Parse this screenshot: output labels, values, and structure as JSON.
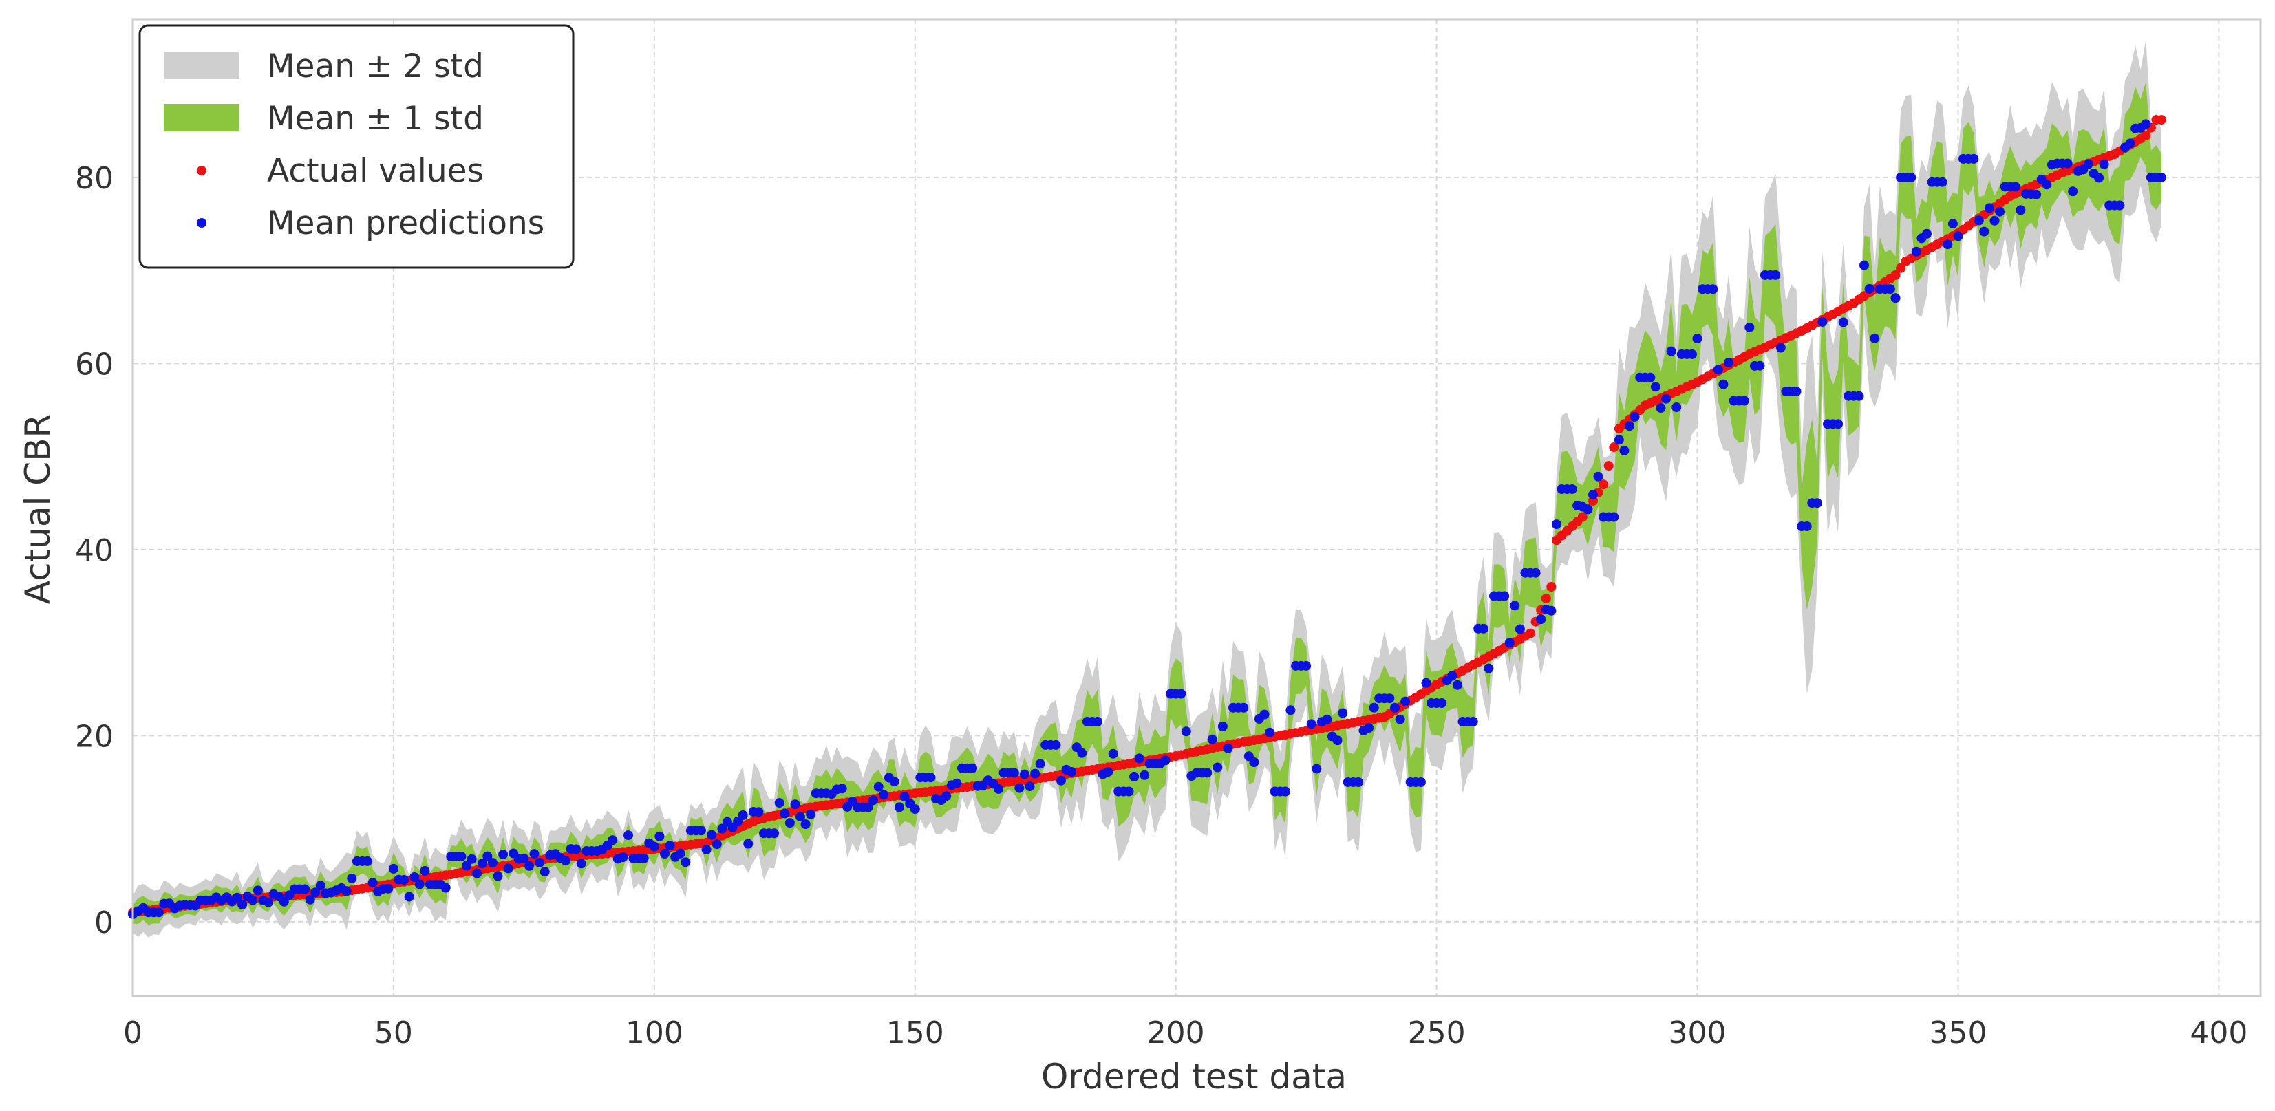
{
  "chart_data": {
    "type": "scatter",
    "xlabel": "Ordered test data",
    "ylabel": "Actual CBR",
    "xlim": [
      0,
      408
    ],
    "ylim": [
      -8,
      97
    ],
    "xticks": [
      0,
      50,
      100,
      150,
      200,
      250,
      300,
      350,
      400
    ],
    "yticks": [
      0,
      20,
      40,
      60,
      80
    ],
    "xtick_labels": [
      "0",
      "50",
      "100",
      "150",
      "200",
      "250",
      "300",
      "350",
      "400"
    ],
    "ytick_labels": [
      "0",
      "20",
      "40",
      "60",
      "80"
    ],
    "grid": true,
    "legend_position": "top-left",
    "series_count": 390,
    "legend": [
      {
        "label": "Mean ± 2 std",
        "kind": "band",
        "color": "#cfcfcf"
      },
      {
        "label": "Mean ± 1 std",
        "kind": "band",
        "color": "#8cc63f"
      },
      {
        "label": "Actual values",
        "kind": "point",
        "color": "#ee1111"
      },
      {
        "label": "Mean predictions",
        "kind": "point",
        "color": "#0b12e0"
      }
    ],
    "actual_curve": [
      [
        0,
        1.0
      ],
      [
        20,
        2.4
      ],
      [
        40,
        3.2
      ],
      [
        60,
        5.0
      ],
      [
        80,
        6.8
      ],
      [
        100,
        7.8
      ],
      [
        110,
        8.5
      ],
      [
        120,
        11.0
      ],
      [
        130,
        12.3
      ],
      [
        150,
        13.8
      ],
      [
        175,
        15.5
      ],
      [
        200,
        17.8
      ],
      [
        210,
        19.0
      ],
      [
        230,
        21.0
      ],
      [
        240,
        22.0
      ],
      [
        250,
        25.5
      ],
      [
        260,
        28.5
      ],
      [
        268,
        31.0
      ],
      [
        272,
        36.0
      ],
      [
        273,
        41.0
      ],
      [
        278,
        43.5
      ],
      [
        282,
        47.0
      ],
      [
        285,
        53.0
      ],
      [
        290,
        55.5
      ],
      [
        300,
        58.0
      ],
      [
        310,
        61.0
      ],
      [
        320,
        63.5
      ],
      [
        330,
        66.5
      ],
      [
        338,
        69.5
      ],
      [
        340,
        71.0
      ],
      [
        350,
        74.0
      ],
      [
        360,
        78.0
      ],
      [
        370,
        80.5
      ],
      [
        380,
        82.5
      ],
      [
        386,
        84.5
      ],
      [
        388,
        86.2
      ],
      [
        390,
        86.2
      ]
    ],
    "prediction_scatter": [
      [
        4,
        1.0
      ],
      [
        14,
        2.3
      ],
      [
        32,
        3.5
      ],
      [
        44,
        6.5
      ],
      [
        58,
        4.0
      ],
      [
        62,
        7.0
      ],
      [
        88,
        7.6
      ],
      [
        97,
        6.8
      ],
      [
        108,
        9.8
      ],
      [
        122,
        9.5
      ],
      [
        132,
        13.8
      ],
      [
        140,
        12.3
      ],
      [
        152,
        15.5
      ],
      [
        160,
        16.5
      ],
      [
        168,
        16.0
      ],
      [
        176,
        19.0
      ],
      [
        184,
        21.5
      ],
      [
        190,
        14.0
      ],
      [
        196,
        17.0
      ],
      [
        200,
        24.5
      ],
      [
        205,
        16.0
      ],
      [
        212,
        23.0
      ],
      [
        220,
        14.0
      ],
      [
        224,
        27.5
      ],
      [
        234,
        15.0
      ],
      [
        240,
        24.0
      ],
      [
        246,
        15.0
      ],
      [
        250,
        23.5
      ],
      [
        256,
        21.5
      ],
      [
        258,
        31.5
      ],
      [
        262,
        35.0
      ],
      [
        268,
        37.5
      ],
      [
        275,
        46.5
      ],
      [
        283,
        43.5
      ],
      [
        290,
        58.5
      ],
      [
        298,
        61.0
      ],
      [
        302,
        68.0
      ],
      [
        308,
        56.0
      ],
      [
        314,
        69.5
      ],
      [
        318,
        57.0
      ],
      [
        321,
        42.5
      ],
      [
        322,
        45.0
      ],
      [
        326,
        53.5
      ],
      [
        330,
        56.5
      ],
      [
        336,
        68.0
      ],
      [
        340,
        80.0
      ],
      [
        346,
        79.5
      ],
      [
        352,
        82.0
      ],
      [
        360,
        79.0
      ],
      [
        370,
        81.5
      ],
      [
        380,
        77.0
      ],
      [
        388,
        80.0
      ]
    ]
  }
}
